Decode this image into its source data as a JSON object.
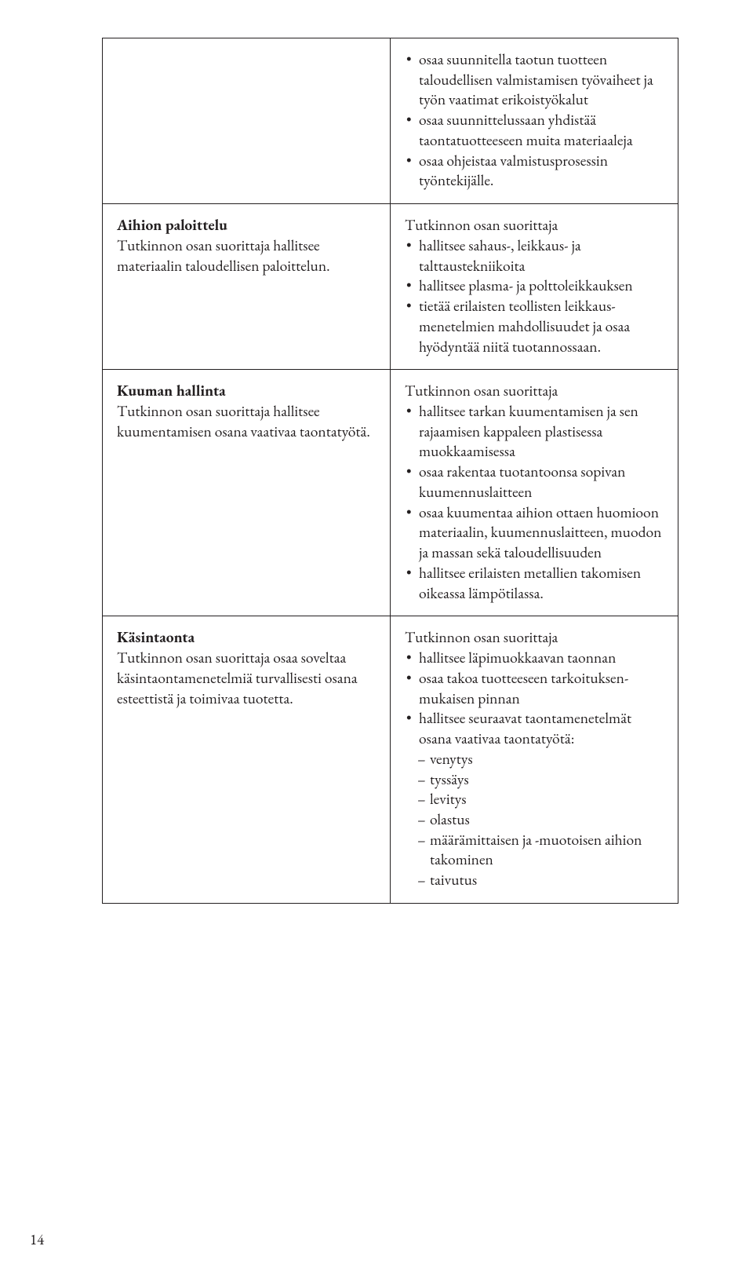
{
  "page_number": "14",
  "table": {
    "rows": [
      {
        "left": {
          "title": "",
          "body": ""
        },
        "right": {
          "intro": "",
          "bullets": [
            "osaa suunnitella taotun tuotteen taloudellisen valmistamisen työ­vaiheet ja työn vaatimat erikois­työkalut",
            "osaa suunnittelussaan yhdistää taontatuotteeseen muita mate­riaaleja",
            "osaa ohjeistaa valmistusprosessin työntekijälle."
          ],
          "dashes": []
        }
      },
      {
        "left": {
          "title": "Aihion paloittelu",
          "body": "Tutkinnon osan suorittaja hallitsee materiaalin taloudellisen paloittelun."
        },
        "right": {
          "intro": "Tutkinnon osan suorittaja",
          "bullets": [
            "hallitsee sahaus-, leikkaus- ja talttaustekniikoita",
            "hallitsee plasma- ja poltto­leikkauksen",
            "tietää erilaisten teollisten leikkaus­menetelmien mahdollisuudet ja osaa hyödyntää niitä tuotannossaan."
          ],
          "dashes": []
        }
      },
      {
        "left": {
          "title": "Kuuman hallinta",
          "body": "Tutkinnon osan suorittaja hallitsee kuumentamisen osana vaativaa taontatyötä."
        },
        "right": {
          "intro": "Tutkinnon osan suorittaja",
          "bullets": [
            "hallitsee tarkan kuumentamisen ja sen rajaamisen kappaleen plastisessa muokkaamisessa",
            "osaa rakentaa tuotantoonsa sopivan kuumennuslaitteen",
            "osaa kuumentaa aihion ottaen huomioon materiaalin, kuumennus­laitteen, muodon ja massan sekä taloudellisuuden",
            "hallitsee erilaisten metallien takomisen oikeassa lämpötilassa."
          ],
          "dashes": []
        }
      },
      {
        "left": {
          "title": "Käsintaonta",
          "body": "Tutkinnon osan suorittaja osaa soveltaa käsintaontamenetelmiä turvallisesti osana esteettistä ja toimivaa tuotetta."
        },
        "right": {
          "intro": "Tutkinnon osan suorittaja",
          "bullets": [
            "hallitsee läpimuokkaavan taonnan",
            "osaa takoa tuotteeseen tarkoituksen­mukaisen pinnan",
            "hallitsee seuraavat taontamene­telmät osana vaativaa taontatyötä:"
          ],
          "dashes": [
            "venytys",
            "tyssäys",
            "levitys",
            "olastus",
            "määrämittaisen ja -muotoisen aihion takominen",
            "taivutus"
          ]
        }
      }
    ]
  }
}
